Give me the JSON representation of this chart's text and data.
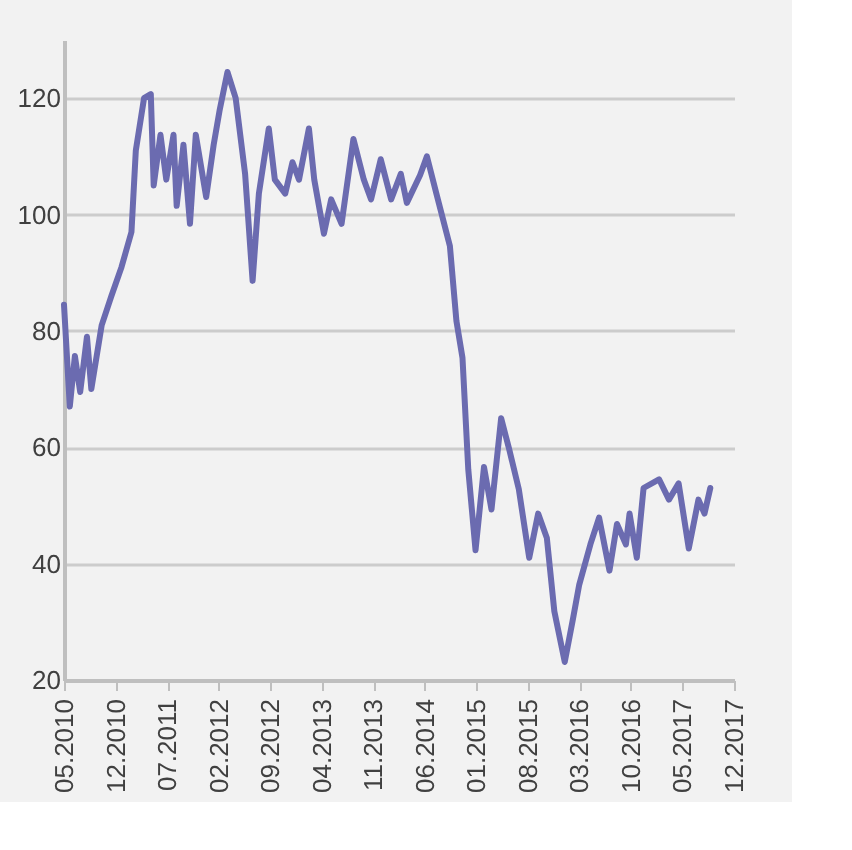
{
  "chart_data": {
    "type": "line",
    "x": [
      "2010-05-01",
      "2010-05-25",
      "2010-06-15",
      "2010-07-07",
      "2010-08-04",
      "2010-08-22",
      "2010-10-04",
      "2010-11-13",
      "2010-12-25",
      "2011-02-04",
      "2011-02-22",
      "2011-03-28",
      "2011-04-25",
      "2011-05-07",
      "2011-06-04",
      "2011-06-28",
      "2011-07-28",
      "2011-08-10",
      "2011-09-07",
      "2011-10-04",
      "2011-10-28",
      "2011-12-10",
      "2012-01-10",
      "2012-02-04",
      "2012-03-07",
      "2012-04-10",
      "2012-05-19",
      "2012-06-19",
      "2012-07-15",
      "2012-08-25",
      "2012-09-19",
      "2012-11-01",
      "2012-12-01",
      "2012-12-28",
      "2013-02-07",
      "2013-03-01",
      "2013-04-10",
      "2013-05-10",
      "2013-06-22",
      "2013-08-10",
      "2013-09-22",
      "2013-10-22",
      "2013-12-01",
      "2014-01-13",
      "2014-02-22",
      "2014-03-19",
      "2014-05-13",
      "2014-06-10",
      "2014-07-19",
      "2014-09-13",
      "2014-10-10",
      "2014-11-04",
      "2014-11-28",
      "2014-12-28",
      "2015-02-01",
      "2015-03-04",
      "2015-04-13",
      "2015-05-16",
      "2015-06-25",
      "2015-08-07",
      "2015-09-13",
      "2015-10-19",
      "2015-11-19",
      "2016-01-01",
      "2016-02-04",
      "2016-03-01",
      "2016-04-16",
      "2016-05-22",
      "2016-07-04",
      "2016-08-04",
      "2016-09-10",
      "2016-09-25",
      "2016-10-25",
      "2016-11-22",
      "2017-01-25",
      "2017-03-07",
      "2017-04-16",
      "2017-05-28",
      "2017-07-07",
      "2017-08-01",
      "2017-08-25"
    ],
    "series": [
      {
        "color": "#6b6bb0",
        "values": [
          84.5,
          67,
          75.7,
          69.5,
          79,
          70,
          81,
          86,
          91,
          97,
          111,
          120,
          120.7,
          105,
          113.7,
          106,
          113.7,
          101.5,
          112,
          98.4,
          113.7,
          103,
          112,
          118,
          124.5,
          120,
          107,
          88.6,
          103.6,
          114.8,
          106,
          103.6,
          109,
          106,
          114.8,
          106,
          96.7,
          102.6,
          98.4,
          113,
          106,
          102.6,
          109.5,
          102.6,
          107,
          102,
          106.8,
          110,
          103.6,
          94.6,
          81.7,
          75.4,
          56.2,
          42.3,
          56.6,
          49.3,
          65,
          59.7,
          52.8,
          41,
          48.6,
          44.4,
          31.8,
          23.1,
          30.5,
          36.4,
          43.3,
          47.9,
          38.8,
          46.8,
          43.3,
          48.6,
          41,
          53,
          54.5,
          51,
          53.8,
          42.6,
          51,
          48.6,
          53
        ]
      }
    ],
    "xlim": [
      "2010-05-01",
      "2017-12-01"
    ],
    "xticks": [
      {
        "value": "2010-05-01",
        "label": "05.2010"
      },
      {
        "value": "2010-12-01",
        "label": "12.2010"
      },
      {
        "value": "2011-07-01",
        "label": "07.2011"
      },
      {
        "value": "2012-02-01",
        "label": "02.2012"
      },
      {
        "value": "2012-09-01",
        "label": "09.2012"
      },
      {
        "value": "2013-04-01",
        "label": "04.2013"
      },
      {
        "value": "2013-11-01",
        "label": "11.2013"
      },
      {
        "value": "2014-06-01",
        "label": "06.2014"
      },
      {
        "value": "2015-01-01",
        "label": "01.2015"
      },
      {
        "value": "2015-08-01",
        "label": "08.2015"
      },
      {
        "value": "2016-03-01",
        "label": "03.2016"
      },
      {
        "value": "2016-10-01",
        "label": "10.2016"
      },
      {
        "value": "2017-05-01",
        "label": "05.2017"
      },
      {
        "value": "2017-12-01",
        "label": "12.2017"
      }
    ],
    "ylim": [
      20,
      130
    ],
    "yticks": [
      20,
      40,
      60,
      80,
      100,
      120
    ],
    "grid": "y",
    "marker": "none",
    "line_style": "solid"
  }
}
